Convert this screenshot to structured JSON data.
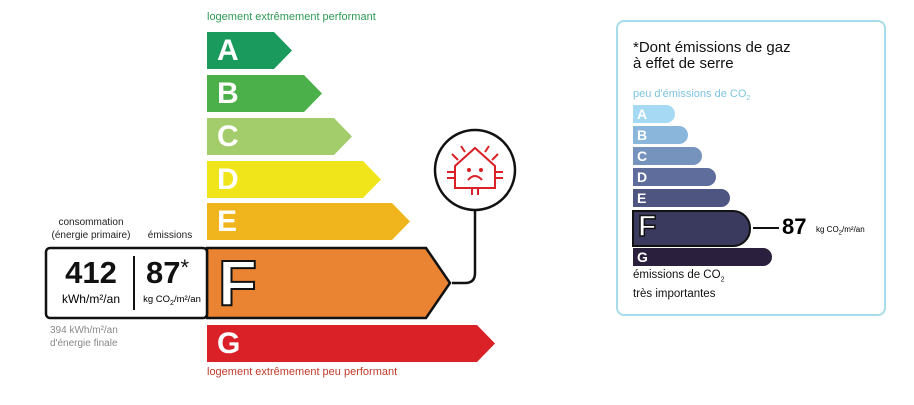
{
  "energy": {
    "top_caption": "logement extrêmement performant",
    "bottom_caption": "logement extrêmement peu performant",
    "classes": [
      {
        "letter": "A",
        "color": "#1a9a5c"
      },
      {
        "letter": "B",
        "color": "#4cb04a"
      },
      {
        "letter": "C",
        "color": "#a3cd6b"
      },
      {
        "letter": "D",
        "color": "#f0e51a"
      },
      {
        "letter": "E",
        "color": "#f0b51d"
      },
      {
        "letter": "F",
        "color": "#ea8433"
      },
      {
        "letter": "G",
        "color": "#d92127"
      }
    ],
    "current_class": "F",
    "consumption_label": "consommation",
    "consumption_sublabel": "(énergie primaire)",
    "emissions_label": "émissions",
    "consumption_value": "412",
    "consumption_unit": "kWh/m²/an",
    "emissions_value": "87",
    "emissions_asterisk": "*",
    "emissions_unit_prefix": "kg CO",
    "emissions_unit_sub": "2",
    "emissions_unit_suffix": "/m²/an",
    "final_energy_value": "394 kWh/m²/an",
    "final_energy_label": "d'énergie finale",
    "icon": "house-heat-loss-sad-icon"
  },
  "ghg": {
    "title_line1": "*Dont émissions de gaz",
    "title_line2": "à effet de serre",
    "top_caption_prefix": "peu d'émissions de CO",
    "sub2": "2",
    "classes": [
      {
        "letter": "A",
        "color": "#a6d9f3"
      },
      {
        "letter": "B",
        "color": "#8bb6dc"
      },
      {
        "letter": "C",
        "color": "#7593bd"
      },
      {
        "letter": "D",
        "color": "#5e6d9b"
      },
      {
        "letter": "E",
        "color": "#4e5580"
      },
      {
        "letter": "F",
        "color": "#3a3a5e"
      },
      {
        "letter": "G",
        "color": "#2a1f3d"
      }
    ],
    "current_class": "F",
    "value": "87",
    "unit_prefix": "kg CO",
    "unit_suffix": "/m²/an",
    "bottom_caption_line1_prefix": "émissions de CO",
    "bottom_caption_line2": "très importantes",
    "border_color": "#a8dcea"
  }
}
